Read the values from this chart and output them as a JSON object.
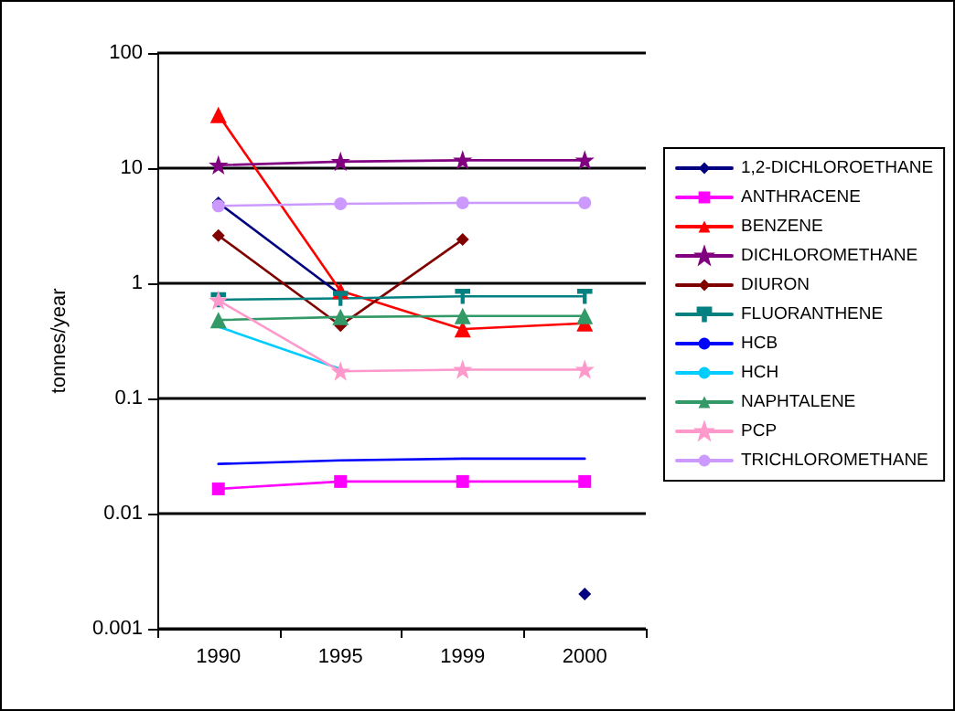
{
  "chart_data": {
    "type": "line",
    "ylabel": "tonnes/year",
    "categories": [
      "1990",
      "1995",
      "1999",
      "2000"
    ],
    "log": "y",
    "ylim": [
      0.001,
      100
    ],
    "yticks": [
      0.001,
      0.01,
      0.1,
      1,
      10,
      100
    ],
    "grid": "y",
    "legend": "right",
    "series": [
      {
        "name": "1,2-DICHLOROETHANE",
        "color": "#000080",
        "marker": "diamond",
        "values": [
          5,
          0.8,
          null,
          0.002
        ]
      },
      {
        "name": "ANTHRACENE",
        "color": "#ff00ff",
        "marker": "square",
        "values": [
          0.0164,
          0.019,
          0.019,
          0.019
        ]
      },
      {
        "name": "BENZENE",
        "color": "#ff0000",
        "marker": "triangle",
        "values": [
          29,
          0.86,
          0.4,
          0.45
        ]
      },
      {
        "name": "DICHLOROMETHANE",
        "color": "#800080",
        "marker": "star",
        "values": [
          10.6,
          11.4,
          11.7,
          11.7
        ]
      },
      {
        "name": "DIURON",
        "color": "#800000",
        "marker": "diamond",
        "values": [
          2.6,
          0.43,
          2.4,
          null
        ]
      },
      {
        "name": "FLUORANTHENE",
        "color": "#008080",
        "marker": "cross",
        "values": [
          0.72,
          0.74,
          0.77,
          0.77
        ]
      },
      {
        "name": "HCB",
        "color": "#0000ff",
        "marker": "none",
        "values": [
          0.027,
          0.029,
          0.03,
          0.03
        ]
      },
      {
        "name": "HCH",
        "color": "#00ccff",
        "marker": "none",
        "values": [
          0.42,
          0.18,
          null,
          null
        ]
      },
      {
        "name": "NAPHTALENE",
        "color": "#339966",
        "marker": "triangle",
        "values": [
          0.48,
          0.51,
          0.52,
          0.52
        ]
      },
      {
        "name": "PCP",
        "color": "#ff99cc",
        "marker": "star",
        "values": [
          0.71,
          0.172,
          0.178,
          0.178
        ]
      },
      {
        "name": "TRICHLOROMETHANE",
        "color": "#cc99ff",
        "marker": "circle",
        "values": [
          4.7,
          4.9,
          5,
          5
        ]
      }
    ]
  }
}
